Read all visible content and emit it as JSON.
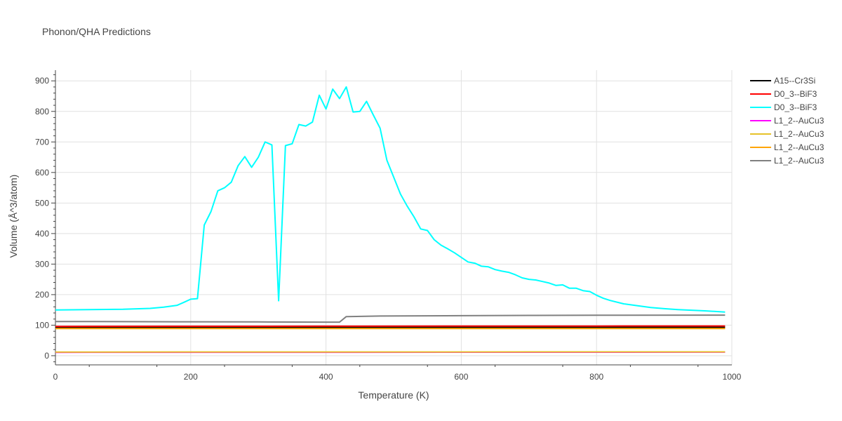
{
  "chart_data": {
    "type": "line",
    "title": "Phonon/QHA Predictions",
    "xlabel": "Temperature (K)",
    "ylabel": "Volume (Å^3/atom)",
    "xlim": [
      0,
      1000
    ],
    "ylim": [
      -30,
      935
    ],
    "xticks": [
      0,
      200,
      400,
      600,
      800,
      1000
    ],
    "yticks": [
      0,
      100,
      200,
      300,
      400,
      500,
      600,
      700,
      800,
      900
    ],
    "grid": true,
    "legend_position": "top-right",
    "series": [
      {
        "name": "A15--Cr3Si",
        "color": "#000000",
        "x": [
          0,
          990
        ],
        "y": [
          93,
          93
        ]
      },
      {
        "name": "D0_3--BiF3",
        "color": "#ff0000",
        "x": [
          0,
          200,
          400,
          600,
          800,
          990
        ],
        "y": [
          96,
          96.3,
          96.6,
          96.8,
          97,
          97.2
        ]
      },
      {
        "name": "D0_3--BiF3",
        "color": "#00ffff",
        "x": [
          0,
          50,
          100,
          140,
          160,
          180,
          190,
          200,
          210,
          220,
          230,
          240,
          250,
          260,
          270,
          280,
          290,
          300,
          310,
          320,
          330,
          340,
          350,
          360,
          370,
          380,
          390,
          400,
          410,
          420,
          430,
          440,
          450,
          460,
          470,
          480,
          490,
          500,
          510,
          520,
          530,
          540,
          550,
          560,
          570,
          580,
          590,
          600,
          610,
          620,
          630,
          640,
          650,
          660,
          670,
          680,
          690,
          700,
          710,
          720,
          730,
          740,
          750,
          760,
          770,
          780,
          790,
          800,
          810,
          820,
          840,
          860,
          880,
          900,
          920,
          940,
          960,
          990
        ],
        "y": [
          150,
          151,
          152,
          155,
          159,
          165,
          175,
          185,
          187,
          428,
          472,
          540,
          550,
          568,
          622,
          652,
          617,
          650,
          700,
          690,
          180,
          688,
          694,
          757,
          752,
          765,
          853,
          808,
          873,
          842,
          880,
          798,
          800,
          833,
          788,
          745,
          640,
          585,
          530,
          490,
          455,
          415,
          410,
          380,
          362,
          350,
          337,
          322,
          307,
          303,
          293,
          291,
          282,
          277,
          273,
          265,
          255,
          250,
          248,
          243,
          238,
          230,
          232,
          221,
          221,
          213,
          210,
          198,
          188,
          181,
          170,
          164,
          158,
          154,
          151,
          149,
          147,
          143
        ]
      },
      {
        "name": "L1_2--AuCu3",
        "color": "#ff00ff",
        "x": [
          0,
          990
        ],
        "y": [
          11,
          11.5
        ]
      },
      {
        "name": "L1_2--AuCu3",
        "color": "#e6c229",
        "x": [
          0,
          990
        ],
        "y": [
          12,
          12.5
        ]
      },
      {
        "name": "L1_2--AuCu3",
        "color": "#ffa500",
        "x": [
          0,
          990
        ],
        "y": [
          89,
          89
        ]
      },
      {
        "name": "L1_2--AuCu3",
        "color": "#808080",
        "x": [
          0,
          100,
          200,
          300,
          400,
          420,
          430,
          480,
          600,
          700,
          800,
          990
        ],
        "y": [
          112,
          111.5,
          111,
          110.5,
          110,
          110,
          128,
          130,
          131,
          132,
          132.5,
          133
        ]
      }
    ]
  }
}
